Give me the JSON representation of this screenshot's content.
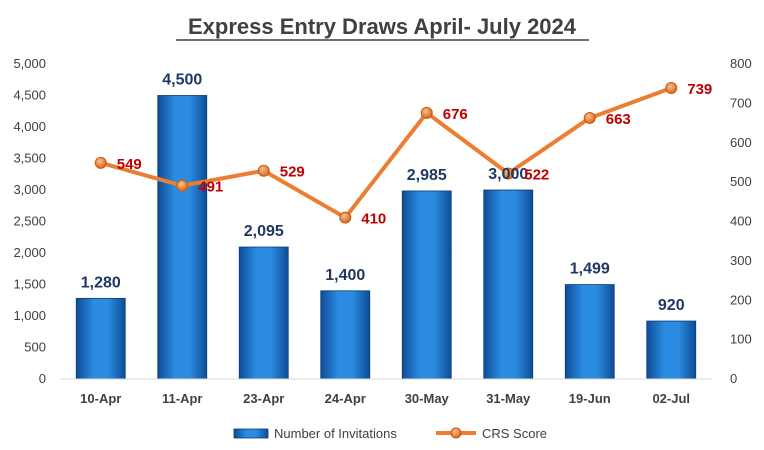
{
  "chart_data": {
    "type": "bar+line",
    "title": "Express Entry Draws April- July 2024",
    "categories": [
      "10-Apr",
      "11-Apr",
      "23-Apr",
      "24-Apr",
      "30-May",
      "31-May",
      "19-Jun",
      "02-Jul"
    ],
    "series": [
      {
        "name": "Number of Invitations",
        "type": "bar",
        "axis": "left",
        "values": [
          1280,
          4500,
          2095,
          1400,
          2985,
          3000,
          1499,
          920
        ],
        "labels": [
          "1,280",
          "4,500",
          "2,095",
          "1,400",
          "2,985",
          "3,000",
          "1,499",
          "920"
        ],
        "color": "#1F77D0"
      },
      {
        "name": "CRS Score",
        "type": "line",
        "axis": "right",
        "values": [
          549,
          491,
          529,
          410,
          676,
          522,
          663,
          739
        ],
        "labels": [
          "549",
          "491",
          "529",
          "410",
          "676",
          "522",
          "663",
          "739"
        ],
        "color": "#ED7D31"
      }
    ],
    "y_left": {
      "min": 0,
      "max": 5000,
      "ticks": [
        0,
        500,
        1000,
        1500,
        2000,
        2500,
        3000,
        3500,
        4000,
        4500,
        5000
      ],
      "tick_labels": [
        "0",
        "500",
        "1,000",
        "1,500",
        "2,000",
        "2,500",
        "3,000",
        "3,500",
        "4,000",
        "4,500",
        "5,000"
      ]
    },
    "y_right": {
      "min": 0,
      "max": 800,
      "ticks": [
        0,
        100,
        200,
        300,
        400,
        500,
        600,
        700,
        800
      ],
      "tick_labels": [
        "0",
        "100",
        "200",
        "300",
        "400",
        "500",
        "600",
        "700",
        "800"
      ]
    },
    "grid": false,
    "legend": "bottom"
  }
}
